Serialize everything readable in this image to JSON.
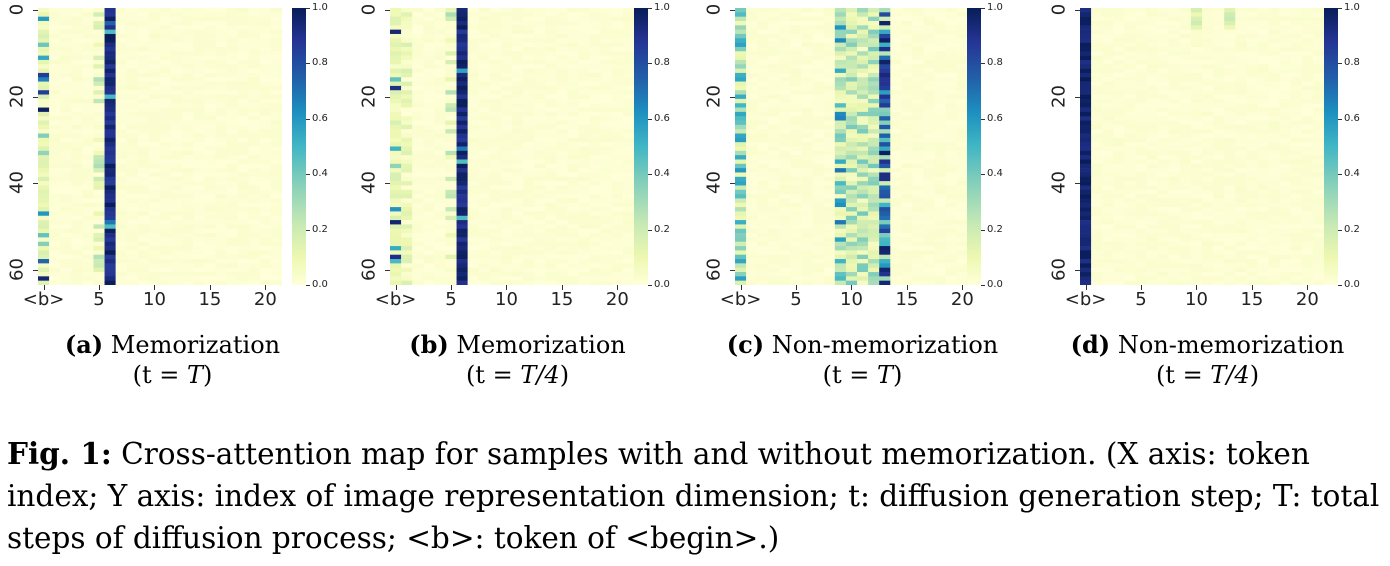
{
  "panels": [
    {
      "id": "a",
      "label": "(a)",
      "title": "Memorization",
      "step_prefix": "(t = ",
      "step": "T",
      "step_suffix": ")",
      "heatmap": {
        "dominant_token": 6,
        "begin_token_active": true,
        "spread": "low"
      }
    },
    {
      "id": "b",
      "label": "(b)",
      "title": "Memorization",
      "step_prefix": "(t = ",
      "step": "T/4",
      "step_suffix": ")",
      "heatmap": {
        "dominant_token": 6,
        "begin_token_active": true,
        "spread": "low"
      }
    },
    {
      "id": "c",
      "label": "(c)",
      "title": "Non-memorization",
      "step_prefix": "(t = ",
      "step": "T",
      "step_suffix": ")",
      "heatmap": {
        "dominant_token": 13,
        "begin_token_active": true,
        "spread": "high"
      }
    },
    {
      "id": "d",
      "label": "(d)",
      "title": "Non-memorization",
      "step_prefix": "(t = ",
      "step": "T/4",
      "step_suffix": ")",
      "heatmap": {
        "dominant_token": 0,
        "begin_token_active": false,
        "spread": "none"
      }
    }
  ],
  "chart_data": {
    "type": "heatmap",
    "x_tick_labels": [
      "<b>",
      "5",
      "10",
      "15",
      "20"
    ],
    "x_tick_values": [
      0,
      5,
      10,
      15,
      20
    ],
    "y_tick_labels": [
      "0",
      "20",
      "40",
      "60"
    ],
    "y_tick_values": [
      0,
      20,
      40,
      60
    ],
    "x_range": [
      0,
      21
    ],
    "y_range": [
      0,
      63
    ],
    "colorbar_ticks": [
      "0.0",
      "0.2",
      "0.4",
      "0.6",
      "0.8",
      "1.0"
    ],
    "colorbar_range": [
      0.0,
      1.0
    ],
    "colormap": [
      "#ffffd9",
      "#edf8b1",
      "#c7e9b4",
      "#7fcdbb",
      "#41b6c4",
      "#1d91c0",
      "#225ea8",
      "#253494",
      "#081d58"
    ]
  },
  "caption": {
    "fig_label": "Fig. 1:",
    "text": "Cross-attention map for samples with and without memorization. (X axis: token index; Y axis: index of image representation dimension; t: diffusion generation step; T: total steps of diffusion process; <b>: token of <begin>.)"
  }
}
